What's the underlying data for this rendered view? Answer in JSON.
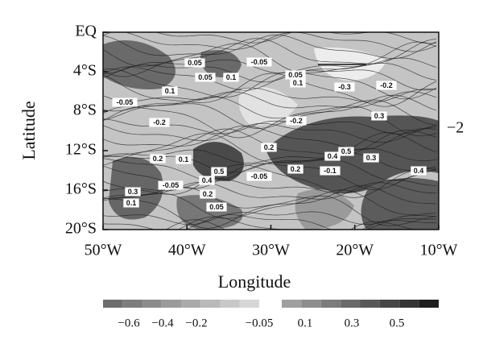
{
  "chart_data": {
    "type": "map",
    "xlabel": "Longitude",
    "ylabel": "Latitude",
    "xlim": [
      -50,
      -10
    ],
    "xticks": [
      {
        "value": -50,
        "label": "50°W"
      },
      {
        "value": -40,
        "label": "40°W"
      },
      {
        "value": -30,
        "label": "30°W"
      },
      {
        "value": -20,
        "label": "20°W"
      },
      {
        "value": -10,
        "label": "10°W"
      }
    ],
    "ylim": [
      -20,
      0
    ],
    "yticks": [
      {
        "value": 0,
        "label": "EQ"
      },
      {
        "value": -4,
        "label": "4°S"
      },
      {
        "value": -8,
        "label": "8°S"
      },
      {
        "value": -12,
        "label": "12°S"
      },
      {
        "value": -16,
        "label": "16°S"
      },
      {
        "value": -20,
        "label": "20°S"
      }
    ],
    "side_label": "−2",
    "contour_labels": [
      "0.05",
      "-0.05",
      "0.05",
      "0.1",
      "0.05",
      "0.1",
      "0.1",
      "-0.05",
      "-0.3",
      "-0.2",
      "-0.2",
      "-0.2",
      "0.3",
      "0.2",
      "0.2",
      "0.1",
      "0.5",
      "0.4",
      "0.5",
      "0.3",
      "0.2",
      "-0.1",
      "0.4",
      "-0.05",
      "-0.05",
      "0.3",
      "0.1",
      "0.4",
      "0.2",
      "0.05"
    ],
    "colorbar": {
      "negative_colors": [
        "#6e6e6e",
        "#7d7d7d",
        "#8c8c8c",
        "#9b9b9b",
        "#aaaaaa",
        "#b9b9b9",
        "#c8c8c8",
        "#d7d7d7"
      ],
      "positive_colors": [
        "#a0a0a0",
        "#8e8e8e",
        "#7c7c7c",
        "#6a6a6a",
        "#585858",
        "#464646",
        "#343434",
        "#1e1e1e"
      ],
      "negative_labels": [
        "−0.6",
        "−0.4",
        "−0.2",
        "−0.05"
      ],
      "positive_labels": [
        "0.1",
        "0.3",
        "0.5"
      ]
    }
  }
}
